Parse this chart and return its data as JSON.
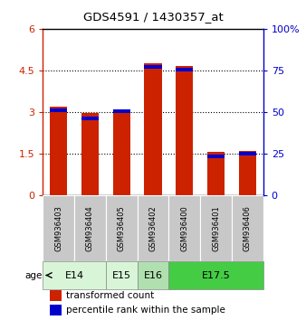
{
  "title": "GDS4591 / 1430357_at",
  "samples": [
    "GSM936403",
    "GSM936404",
    "GSM936405",
    "GSM936402",
    "GSM936400",
    "GSM936401",
    "GSM936406"
  ],
  "red_values": [
    3.2,
    2.95,
    3.1,
    4.75,
    4.65,
    1.55,
    1.6
  ],
  "blue_values": [
    3.05,
    2.75,
    3.03,
    4.62,
    4.53,
    1.38,
    1.5
  ],
  "ylim_left": [
    0,
    6
  ],
  "ylim_right": [
    0,
    100
  ],
  "yticks_left": [
    0,
    1.5,
    3.0,
    4.5
  ],
  "yticks_right": [
    0,
    25,
    50,
    75
  ],
  "ytick_labels_left": [
    "0",
    "1.5",
    "3",
    "4.5"
  ],
  "ytick_labels_right": [
    "0",
    "25",
    "50",
    "75"
  ],
  "ytick_top_left": "6",
  "ytick_top_right": "100%",
  "bar_color_red": "#cc2200",
  "bar_color_blue": "#0000cc",
  "bar_width": 0.55,
  "bg_color": "#ffffff",
  "plot_bg": "#ffffff",
  "sample_box_color": "#cccccc",
  "age_group_colors": [
    "#d8f5d8",
    "#d8f5d8",
    "#b0e0b0",
    "#44cc44"
  ],
  "age_group_labels": [
    "E14",
    "E15",
    "E16",
    "E17.5"
  ],
  "age_group_indices": [
    [
      0,
      1
    ],
    [
      2
    ],
    [
      3
    ],
    [
      4,
      5,
      6
    ]
  ],
  "legend_red": "transformed count",
  "legend_blue": "percentile rank within the sample"
}
